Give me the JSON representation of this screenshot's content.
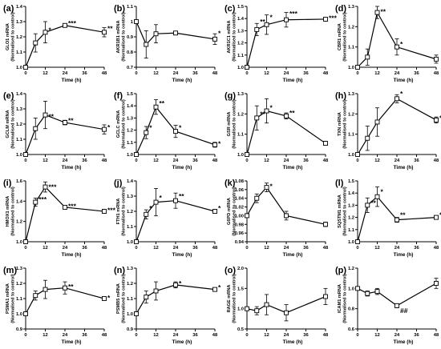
{
  "chart_data": [
    {
      "type": "line",
      "panel_label": "(a)",
      "ylabel": "GLO1 mRNA",
      "ylabel2": "(Normalised to control)",
      "xlabel": "Time (h)",
      "xticks": [
        0,
        12,
        24,
        36,
        48
      ],
      "yticks": [
        1.0,
        1.1,
        1.2,
        1.3,
        1.4
      ],
      "yticklabels": [
        "1.0",
        "1.1",
        "1.2",
        "1.3",
        "1.4"
      ],
      "ylim": [
        1.0,
        1.4
      ],
      "x": [
        0,
        6,
        12,
        24,
        48
      ],
      "y": [
        1.0,
        1.16,
        1.23,
        1.275,
        1.23
      ],
      "err": [
        0,
        0.06,
        0.07,
        0.01,
        0.03
      ],
      "annotations": [
        {
          "x": 12,
          "y": 1.245,
          "text": "*"
        },
        {
          "x": 24,
          "y": 1.29,
          "text": "***"
        },
        {
          "x": 48,
          "y": 1.255,
          "text": "**"
        }
      ]
    },
    {
      "type": "line",
      "panel_label": "(b)",
      "ylabel": "AKR1B1 mRNA",
      "ylabel2": "(Normalised to control)",
      "xlabel": "Time (h)",
      "xticks": [
        0,
        12,
        24,
        36,
        48
      ],
      "yticks": [
        0.7,
        0.8,
        0.9,
        1.0,
        1.1
      ],
      "yticklabels": [
        "0.7",
        "0.8",
        "0.9",
        "1",
        "1.1"
      ],
      "ylim": [
        0.7,
        1.1
      ],
      "x": [
        0,
        6,
        12,
        24,
        48
      ],
      "y": [
        1.0,
        0.85,
        0.92,
        0.925,
        0.885
      ],
      "err": [
        0,
        0.09,
        0.06,
        0.01,
        0.035
      ],
      "annotations": [
        {
          "x": 48,
          "y": 0.925,
          "text": "*"
        }
      ]
    },
    {
      "type": "line",
      "panel_label": "(c)",
      "ylabel": "AKR1C1 mRNA",
      "ylabel2": "(Normalised to control)",
      "xlabel": "Time (h)",
      "xticks": [
        0,
        12,
        24,
        36,
        48
      ],
      "yticks": [
        1.0,
        1.1,
        1.2,
        1.3,
        1.4,
        1.5
      ],
      "yticklabels": [
        "1.0",
        "1.1",
        "1.2",
        "1.3",
        "1.4",
        "1.5"
      ],
      "ylim": [
        1.0,
        1.5
      ],
      "x": [
        0,
        6,
        12,
        24,
        48
      ],
      "y": [
        1.0,
        1.31,
        1.35,
        1.39,
        1.395
      ],
      "err": [
        0,
        0.05,
        0.08,
        0.06,
        0.015
      ],
      "annotations": [
        {
          "x": 6,
          "y": 1.375,
          "text": "**"
        },
        {
          "x": 12,
          "y": 1.41,
          "text": "*"
        },
        {
          "x": 24,
          "y": 1.44,
          "text": "***"
        },
        {
          "x": 48,
          "y": 1.405,
          "text": "***"
        }
      ]
    },
    {
      "type": "line",
      "panel_label": "(d)",
      "ylabel": "CBR1 mRNA",
      "ylabel2": "(Normalised to control)",
      "xlabel": "Time (h)",
      "xticks": [
        0,
        12,
        24,
        36,
        48
      ],
      "yticks": [
        1.0,
        1.1,
        1.2,
        1.3
      ],
      "yticklabels": [
        "1.0",
        "1.1",
        "1.2",
        "1.3"
      ],
      "ylim": [
        1.0,
        1.3
      ],
      "x": [
        0,
        6,
        12,
        24,
        48
      ],
      "y": [
        1.0,
        1.05,
        1.27,
        1.1,
        1.04
      ],
      "err": [
        0,
        0.04,
        0.03,
        0.04,
        0.02
      ],
      "annotations": [
        {
          "x": 12,
          "y": 1.275,
          "text": "**"
        },
        {
          "x": 24,
          "y": 1.115,
          "text": "*"
        }
      ]
    },
    {
      "type": "line",
      "panel_label": "(e)",
      "ylabel": "GCLM mRNA",
      "ylabel2": "(Normalised to control)",
      "xlabel": "Time (h)",
      "xticks": [
        0,
        12,
        24,
        36,
        48
      ],
      "yticks": [
        1.0,
        1.1,
        1.2,
        1.3,
        1.4
      ],
      "yticklabels": [
        "1.0",
        "1.1",
        "1.2",
        "1.3",
        "1.4"
      ],
      "ylim": [
        1.0,
        1.4
      ],
      "x": [
        0,
        6,
        12,
        24,
        48
      ],
      "y": [
        1.0,
        1.17,
        1.26,
        1.21,
        1.165
      ],
      "err": [
        0,
        0.07,
        0.09,
        0.015,
        0.03
      ],
      "annotations": [
        {
          "x": 12,
          "y": 1.25,
          "text": "**"
        },
        {
          "x": 24,
          "y": 1.225,
          "text": "**"
        },
        {
          "x": 48,
          "y": 1.18,
          "text": "*"
        }
      ]
    },
    {
      "type": "line",
      "panel_label": "(f)",
      "ylabel": "GCLC mRNA",
      "ylabel2": "(Normalised to control)",
      "xlabel": "Time (h)",
      "xticks": [
        0,
        12,
        24,
        36,
        48
      ],
      "yticks": [
        1.0,
        1.1,
        1.2,
        1.3,
        1.4,
        1.5
      ],
      "yticklabels": [
        "1.0",
        "1.1",
        "1.2",
        "1.3",
        "1.4",
        "1.5"
      ],
      "ylim": [
        1.0,
        1.5
      ],
      "x": [
        0,
        6,
        12,
        24,
        48
      ],
      "y": [
        1.0,
        1.18,
        1.39,
        1.19,
        1.08
      ],
      "err": [
        0,
        0.05,
        0.06,
        0.05,
        0.02
      ],
      "annotations": [
        {
          "x": 6,
          "y": 1.22,
          "text": "*"
        },
        {
          "x": 12,
          "y": 1.42,
          "text": "**"
        },
        {
          "x": 24,
          "y": 1.22,
          "text": "*"
        },
        {
          "x": 48,
          "y": 1.09,
          "text": "*"
        }
      ]
    },
    {
      "type": "line",
      "panel_label": "(g)",
      "ylabel": "GSR mRNA",
      "ylabel2": "(Normalised to control)",
      "xlabel": "Time (h)",
      "xticks": [
        0,
        12,
        24,
        36,
        48
      ],
      "yticks": [
        1.0,
        1.1,
        1.2,
        1.3
      ],
      "yticklabels": [
        "1.0",
        "1.1",
        "1.2",
        "1.3"
      ],
      "ylim": [
        1.0,
        1.3
      ],
      "x": [
        0,
        6,
        12,
        24,
        48
      ],
      "y": [
        1.0,
        1.18,
        1.215,
        1.19,
        1.055
      ],
      "err": [
        0,
        0.06,
        0.06,
        0.015,
        0.01
      ],
      "annotations": [
        {
          "x": 6,
          "y": 1.2,
          "text": "**"
        },
        {
          "x": 12,
          "y": 1.23,
          "text": "*"
        },
        {
          "x": 24,
          "y": 1.205,
          "text": "**"
        }
      ]
    },
    {
      "type": "line",
      "panel_label": "(h)",
      "ylabel": "TXN mRNA",
      "ylabel2": "(Normalised to control)",
      "xlabel": "Time (h)",
      "xticks": [
        0,
        12,
        24,
        36,
        48
      ],
      "yticks": [
        1.0,
        1.1,
        1.2,
        1.3
      ],
      "yticklabels": [
        "1.0",
        "1.1",
        "1.2",
        "1.3"
      ],
      "ylim": [
        1.0,
        1.3
      ],
      "x": [
        0,
        6,
        12,
        24,
        48
      ],
      "y": [
        1.0,
        1.08,
        1.16,
        1.275,
        1.17
      ],
      "err": [
        0,
        0.06,
        0.07,
        0.02,
        0.015
      ],
      "annotations": [
        {
          "x": 24,
          "y": 1.3,
          "text": "*"
        },
        {
          "x": 48,
          "y": 1.18,
          "text": "*"
        }
      ]
    },
    {
      "type": "line",
      "panel_label": "(i)",
      "ylabel": "HMOX1 mRNA",
      "ylabel2": "(Normalised to control)",
      "xlabel": "Time (h)",
      "xticks": [
        0,
        12,
        24,
        36,
        48
      ],
      "yticks": [
        1.0,
        1.2,
        1.4,
        1.6
      ],
      "yticklabels": [
        "1.0",
        "1.2",
        "1.4",
        "1.6"
      ],
      "ylim": [
        1.0,
        1.6
      ],
      "x": [
        0,
        6,
        12,
        24,
        48
      ],
      "y": [
        1.0,
        1.39,
        1.54,
        1.34,
        1.3
      ],
      "err": [
        0,
        0.04,
        0.05,
        0.015,
        0.02
      ],
      "annotations": [
        {
          "x": 6,
          "y": 1.42,
          "text": "***"
        },
        {
          "x": 12,
          "y": 1.54,
          "text": "***"
        },
        {
          "x": 24,
          "y": 1.35,
          "text": "***"
        },
        {
          "x": 48,
          "y": 1.31,
          "text": "***"
        }
      ]
    },
    {
      "type": "line",
      "panel_label": "(j)",
      "ylabel": "FTH1 mRNA",
      "ylabel2": "(Normalised to control)",
      "xlabel": "Time (h)",
      "xticks": [
        0,
        12,
        24,
        36,
        48
      ],
      "yticks": [
        1.0,
        1.1,
        1.2,
        1.3,
        1.4
      ],
      "yticklabels": [
        "1.0",
        "1.1",
        "1.2",
        "1.3",
        "1.4"
      ],
      "ylim": [
        1.0,
        1.4
      ],
      "x": [
        0,
        6,
        12,
        24,
        48
      ],
      "y": [
        1.0,
        1.18,
        1.26,
        1.27,
        1.2
      ],
      "err": [
        0,
        0.03,
        0.09,
        0.05,
        0.01
      ],
      "annotations": [
        {
          "x": 6,
          "y": 1.22,
          "text": "*"
        },
        {
          "x": 12,
          "y": 1.29,
          "text": "*"
        },
        {
          "x": 24,
          "y": 1.3,
          "text": "**"
        },
        {
          "x": 48,
          "y": 1.22,
          "text": "*"
        }
      ]
    },
    {
      "type": "line",
      "panel_label": "(k)",
      "ylabel": "G6PD mRNA",
      "ylabel2": "(Normalised to control)",
      "xlabel": "Time (h)",
      "xticks": [
        0,
        12,
        24,
        36,
        48
      ],
      "yticks": [
        0.94,
        0.96,
        0.98,
        1.0,
        1.02,
        1.04,
        1.06,
        1.08
      ],
      "yticklabels": [
        "0.94",
        "0.96",
        "0.98",
        "1.00",
        "1.02",
        "1.04",
        "1.06",
        "1.08"
      ],
      "ylim": [
        0.94,
        1.08
      ],
      "x": [
        0,
        6,
        12,
        24,
        48
      ],
      "y": [
        1.0,
        1.04,
        1.065,
        1.0,
        0.98
      ],
      "err": [
        0,
        0.01,
        0.01,
        0.01,
        0.005
      ],
      "annotations": [
        {
          "x": 12,
          "y": 1.068,
          "text": "*"
        }
      ]
    },
    {
      "type": "line",
      "panel_label": "(l)",
      "ylabel": "SQSTM1 mRNA",
      "ylabel2": "(Normalised to control)",
      "xlabel": "Time (h)",
      "xticks": [
        0,
        12,
        24,
        36,
        48
      ],
      "yticks": [
        1.0,
        1.1,
        1.2,
        1.3,
        1.4,
        1.5
      ],
      "yticklabels": [
        "1.0",
        "1.1",
        "1.2",
        "1.3",
        "1.4",
        "1.5"
      ],
      "ylim": [
        1.0,
        1.5
      ],
      "x": [
        0,
        6,
        12,
        24,
        48
      ],
      "y": [
        1.0,
        1.3,
        1.37,
        1.18,
        1.2
      ],
      "err": [
        0,
        0.06,
        0.08,
        0.02,
        0.01
      ],
      "annotations": [
        {
          "x": 6,
          "y": 1.32,
          "text": "**"
        },
        {
          "x": 12,
          "y": 1.41,
          "text": "*"
        },
        {
          "x": 24,
          "y": 1.22,
          "text": "**"
        },
        {
          "x": 48,
          "y": 1.22,
          "text": "*"
        }
      ]
    },
    {
      "type": "line",
      "panel_label": "(m)",
      "ylabel": "PSMA1 mRNA",
      "ylabel2": "(Normalised to control)",
      "xlabel": "Time (h)",
      "xticks": [
        0,
        12,
        24,
        36,
        48
      ],
      "yticks": [
        0.9,
        1.0,
        1.1,
        1.2,
        1.3
      ],
      "yticklabels": [
        "0.9",
        "1.0",
        "1.1",
        "1.2",
        "1.3"
      ],
      "ylim": [
        0.9,
        1.3
      ],
      "x": [
        0,
        6,
        12,
        24,
        48
      ],
      "y": [
        1.0,
        1.12,
        1.16,
        1.17,
        1.1
      ],
      "err": [
        0,
        0.03,
        0.06,
        0.04,
        0.005
      ],
      "annotations": [
        {
          "x": 24,
          "y": 1.18,
          "text": "**"
        },
        {
          "x": 48,
          "y": 1.105,
          "text": "*"
        }
      ]
    },
    {
      "type": "line",
      "panel_label": "(n)",
      "ylabel": "PSMB5 mRNA",
      "ylabel2": "(Normalised to control)",
      "xlabel": "Time (h)",
      "xticks": [
        0,
        12,
        24,
        36,
        48
      ],
      "yticks": [
        0.9,
        1.0,
        1.1,
        1.2,
        1.3
      ],
      "yticklabels": [
        "0.9",
        "1.0",
        "1.1",
        "1.2",
        "1.3"
      ],
      "ylim": [
        0.9,
        1.3
      ],
      "x": [
        0,
        6,
        12,
        24,
        48
      ],
      "y": [
        1.0,
        1.11,
        1.15,
        1.19,
        1.16
      ],
      "err": [
        0,
        0.04,
        0.06,
        0.02,
        0.01
      ],
      "annotations": [
        {
          "x": 24,
          "y": 1.2,
          "text": "*"
        },
        {
          "x": 48,
          "y": 1.175,
          "text": "*"
        }
      ]
    },
    {
      "type": "line",
      "panel_label": "(o)",
      "ylabel": "RAGE mRNA",
      "ylabel2": "(Normalised to control)",
      "xlabel": "Time (h)",
      "xticks": [
        0,
        12,
        24,
        36,
        48
      ],
      "yticks": [
        0.5,
        1.0,
        1.5,
        2.0
      ],
      "yticklabels": [
        "0.5",
        "1.0",
        "1.5",
        "2.0"
      ],
      "ylim": [
        0.5,
        2.0
      ],
      "x": [
        0,
        6,
        12,
        24,
        48
      ],
      "y": [
        1.0,
        0.95,
        1.1,
        0.9,
        1.3
      ],
      "err": [
        0,
        0.1,
        0.25,
        0.2,
        0.2
      ],
      "annotations": []
    },
    {
      "type": "line",
      "panel_label": "(p)",
      "ylabel": "ICAM1 mRNA",
      "ylabel2": "(Normalised to control)",
      "xlabel": "Time (h)",
      "xticks": [
        0,
        12,
        24,
        36,
        48
      ],
      "yticks": [
        0.6,
        0.8,
        1.0,
        1.2
      ],
      "yticklabels": [
        "0.6",
        "0.8",
        "1.0",
        "1.2"
      ],
      "ylim": [
        0.6,
        1.2
      ],
      "x": [
        0,
        6,
        12,
        24,
        48
      ],
      "y": [
        1.0,
        0.95,
        0.97,
        0.83,
        1.05
      ],
      "err": [
        0,
        0.025,
        0.03,
        0.02,
        0.05
      ],
      "annotations": [
        {
          "x": 24,
          "y": 0.78,
          "text": "##"
        }
      ]
    }
  ]
}
